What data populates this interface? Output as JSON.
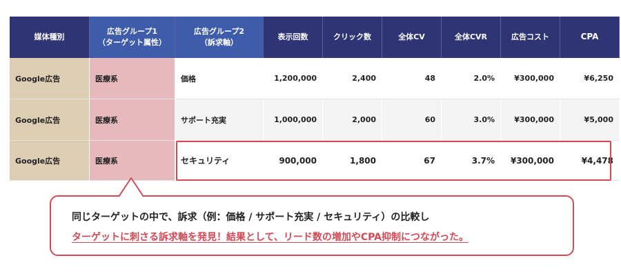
{
  "headers": {
    "media": "媒体種別",
    "group1_line1": "広告グループ1",
    "group1_line2": "（ターゲット属性）",
    "group2_line1": "広告グループ2",
    "group2_line2": "（訴求軸）",
    "impressions": "表示回数",
    "clicks": "クリック数",
    "cv": "全体CV",
    "cvr": "全体CVR",
    "cost": "広告コスト",
    "cpa": "CPA"
  },
  "rows": [
    {
      "media": "Google広告",
      "target": "医療系",
      "appeal": "価格",
      "impressions": "1,200,000",
      "clicks": "2,400",
      "cv": "48",
      "cvr": "2.0%",
      "cost": "¥300,000",
      "cpa": "¥6,250"
    },
    {
      "media": "Google広告",
      "target": "医療系",
      "appeal": "サポート充実",
      "impressions": "1,000,000",
      "clicks": "2,000",
      "cv": "60",
      "cvr": "3.0%",
      "cost": "¥300,000",
      "cpa": "¥5,000"
    },
    {
      "media": "Google広告",
      "target": "医療系",
      "appeal": "セキュリティ",
      "impressions": "900,000",
      "clicks": "1,800",
      "cv": "67",
      "cvr": "3.7%",
      "cost": "¥300,000",
      "cpa": "¥4,478"
    }
  ],
  "callout": {
    "line1": "同じターゲットの中で、訴求（例：価格 / サポート充実 / セキュリティ）の比較し",
    "line2": "ターゲットに刺さる訴求軸を発見！結果として、リード数の増加やCPA抑制につながった。"
  },
  "colors": {
    "header": "#2f3474",
    "header_alt": "#3f5caa",
    "media_cell": "#dccdb3",
    "target_cell": "#e6b9bd",
    "accent": "#d24a56"
  }
}
